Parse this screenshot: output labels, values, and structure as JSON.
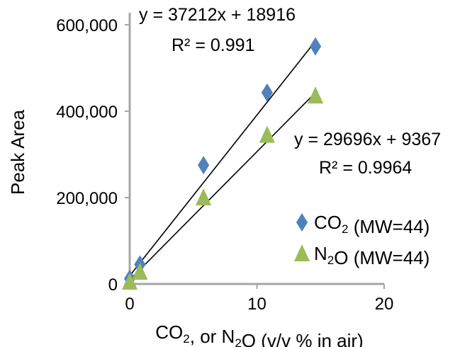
{
  "chart_data": {
    "type": "scatter",
    "ylabel": "Peak Area",
    "xlabel": {
      "parts": [
        {
          "text": "CO",
          "sub": false
        },
        {
          "text": "2",
          "sub": true
        },
        {
          "text": ", or N",
          "sub": false
        },
        {
          "text": "2",
          "sub": true
        },
        {
          "text": "O (v/v % in air)",
          "sub": false
        }
      ]
    },
    "xlim": [
      0,
      20
    ],
    "ylim": [
      0,
      600000
    ],
    "x_ticks": [
      0,
      10,
      20
    ],
    "x_tick_labels": [
      "0",
      "10",
      "20"
    ],
    "y_ticks": [
      0,
      200000,
      400000,
      600000
    ],
    "y_tick_labels": [
      "0",
      "200,000",
      "400,000",
      "600,000"
    ],
    "grid": false,
    "legend_position": "right",
    "series": [
      {
        "name_parts": [
          {
            "text": "CO",
            "sub": false
          },
          {
            "text": "2",
            "sub": true
          },
          {
            "text": " (MW=44)",
            "sub": false
          }
        ],
        "marker": "diamond",
        "color": "#4F81BD",
        "points": [
          [
            0,
            12000
          ],
          [
            0.8,
            45000
          ],
          [
            5.8,
            275000
          ],
          [
            10.8,
            443000
          ],
          [
            14.6,
            550000
          ]
        ],
        "trendline": {
          "slope": 37212,
          "intercept": 18916,
          "x_range": [
            0,
            14.6
          ],
          "equation": "y = 37212x + 18916",
          "r2": "R² = 0.991"
        }
      },
      {
        "name_parts": [
          {
            "text": "N",
            "sub": false
          },
          {
            "text": "2",
            "sub": true
          },
          {
            "text": "O (MW=44)",
            "sub": false
          }
        ],
        "marker": "triangle",
        "color": "#9BBB59",
        "points": [
          [
            0,
            5000
          ],
          [
            0.8,
            28000
          ],
          [
            5.8,
            200000
          ],
          [
            10.8,
            345000
          ],
          [
            14.6,
            436000
          ]
        ],
        "trendline": {
          "slope": 29696,
          "intercept": 9367,
          "x_range": [
            0,
            14.6
          ],
          "equation": "y = 29696x + 9367",
          "r2": "R² = 0.9964"
        }
      }
    ]
  }
}
